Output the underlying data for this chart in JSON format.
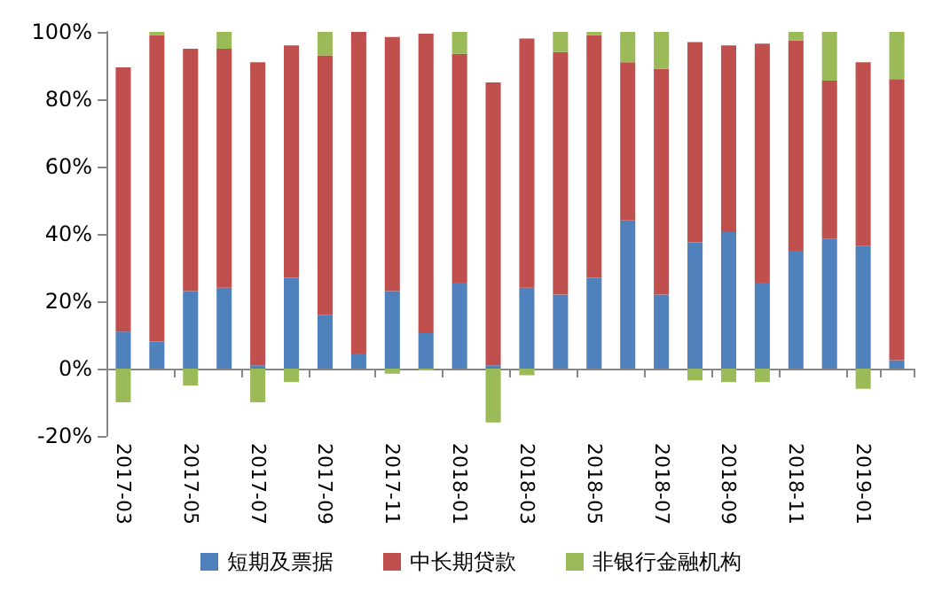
{
  "chart_data": {
    "type": "bar",
    "stacked": true,
    "categories": [
      "2017-03",
      null,
      "2017-05",
      null,
      "2017-07",
      null,
      "2017-09",
      null,
      "2017-11",
      null,
      "2018-01",
      null,
      "2018-03",
      null,
      "2018-05",
      null,
      "2018-07",
      null,
      "2018-09",
      null,
      "2018-11",
      null,
      "2019-01",
      null
    ],
    "series": [
      {
        "name": "短期及票据",
        "color": "#4f81bd",
        "values": [
          11,
          8,
          23,
          24,
          1,
          27,
          16,
          4.5,
          23,
          10.5,
          25.5,
          1,
          24,
          22,
          27,
          44,
          22,
          37.5,
          40.5,
          25.5,
          35,
          38.5,
          36.5,
          2.5
        ]
      },
      {
        "name": "中长期贷款",
        "color": "#c0504d",
        "values": [
          78.5,
          91,
          72,
          71,
          90,
          69,
          77,
          95.5,
          75.5,
          89,
          68,
          84,
          74,
          72,
          72,
          47,
          67,
          59.5,
          55.5,
          71,
          62.5,
          47,
          54.5,
          83.5
        ]
      },
      {
        "name": "非银行金融机构",
        "color": "#9bbb59",
        "values": [
          -10,
          1,
          -5,
          5,
          -10,
          -4,
          7,
          0,
          -1.5,
          -0.5,
          6.5,
          -16,
          -2,
          6,
          1,
          9,
          11,
          -3.5,
          -4,
          -4,
          2.5,
          14.5,
          -6,
          14
        ]
      }
    ],
    "ylim": [
      -20,
      100
    ],
    "yticks": [
      {
        "value": -20,
        "label": "-20%"
      },
      {
        "value": 0,
        "label": "0%"
      },
      {
        "value": 20,
        "label": "20%"
      },
      {
        "value": 40,
        "label": "40%"
      },
      {
        "value": 60,
        "label": "60%"
      },
      {
        "value": 80,
        "label": "80%"
      },
      {
        "value": 100,
        "label": "100%"
      }
    ],
    "legend": "bottom"
  }
}
